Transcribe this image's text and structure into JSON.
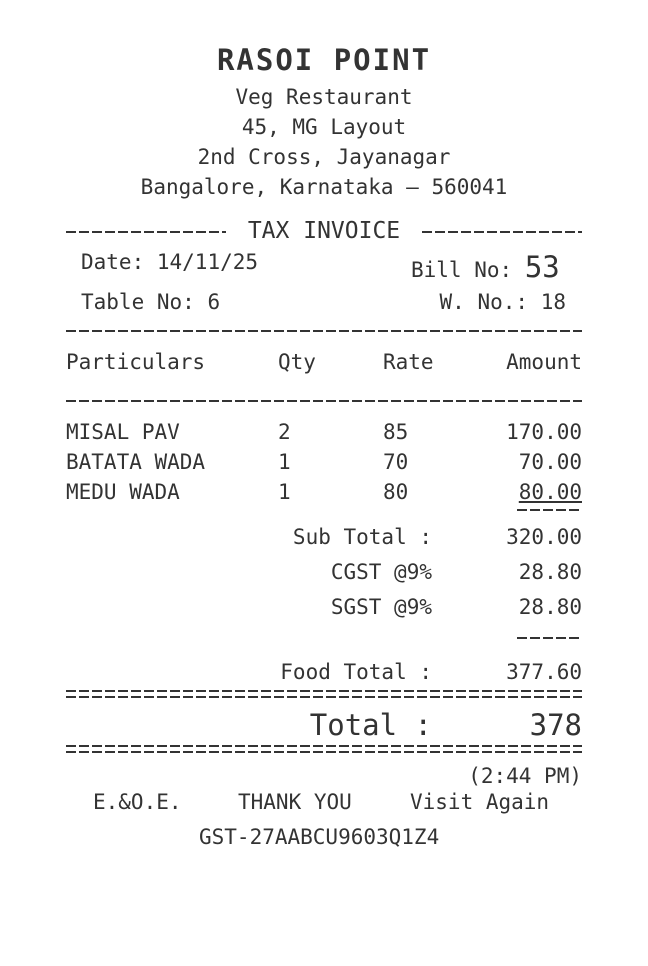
{
  "header": {
    "name": "RASOI POINT",
    "type": "Veg Restaurant",
    "address": [
      "45, MG Layout",
      "2nd Cross, Jayanagar",
      "Bangalore, Karnataka – 560041"
    ]
  },
  "invoice_title": "TAX INVOICE",
  "meta": {
    "date_label": "Date:",
    "date": "14/11/25",
    "bill_label": "Bill No:",
    "bill_no": "53",
    "table_label": "Table No:",
    "table_no": "6",
    "waiter_label": "W. No.:",
    "waiter_no": "18"
  },
  "columns": [
    "Particulars",
    "Qty",
    "Rate",
    "Amount"
  ],
  "items": [
    {
      "name": "MISAL PAV",
      "qty": "2",
      "rate": "85",
      "amount": "170.00"
    },
    {
      "name": "BATATA WADA",
      "qty": "1",
      "rate": "70",
      "amount": "70.00"
    },
    {
      "name": "MEDU WADA",
      "qty": "1",
      "rate": "80",
      "amount": "80.00"
    }
  ],
  "totals": {
    "subtotal_label": "Sub Total :",
    "subtotal": "320.00",
    "cgst_label": "CGST @9%",
    "cgst": "28.80",
    "sgst_label": "SGST @9%",
    "sgst": "28.80",
    "food_total_label": "Food Total :",
    "food_total": "377.60",
    "total_label": "Total :",
    "total": "378"
  },
  "footer": {
    "time": "(2:44 PM)",
    "eoe": "E.&O.E.",
    "thanks": "THANK YOU",
    "visit": "Visit Again",
    "gst": "GST-27AABCU9603Q1Z4"
  }
}
